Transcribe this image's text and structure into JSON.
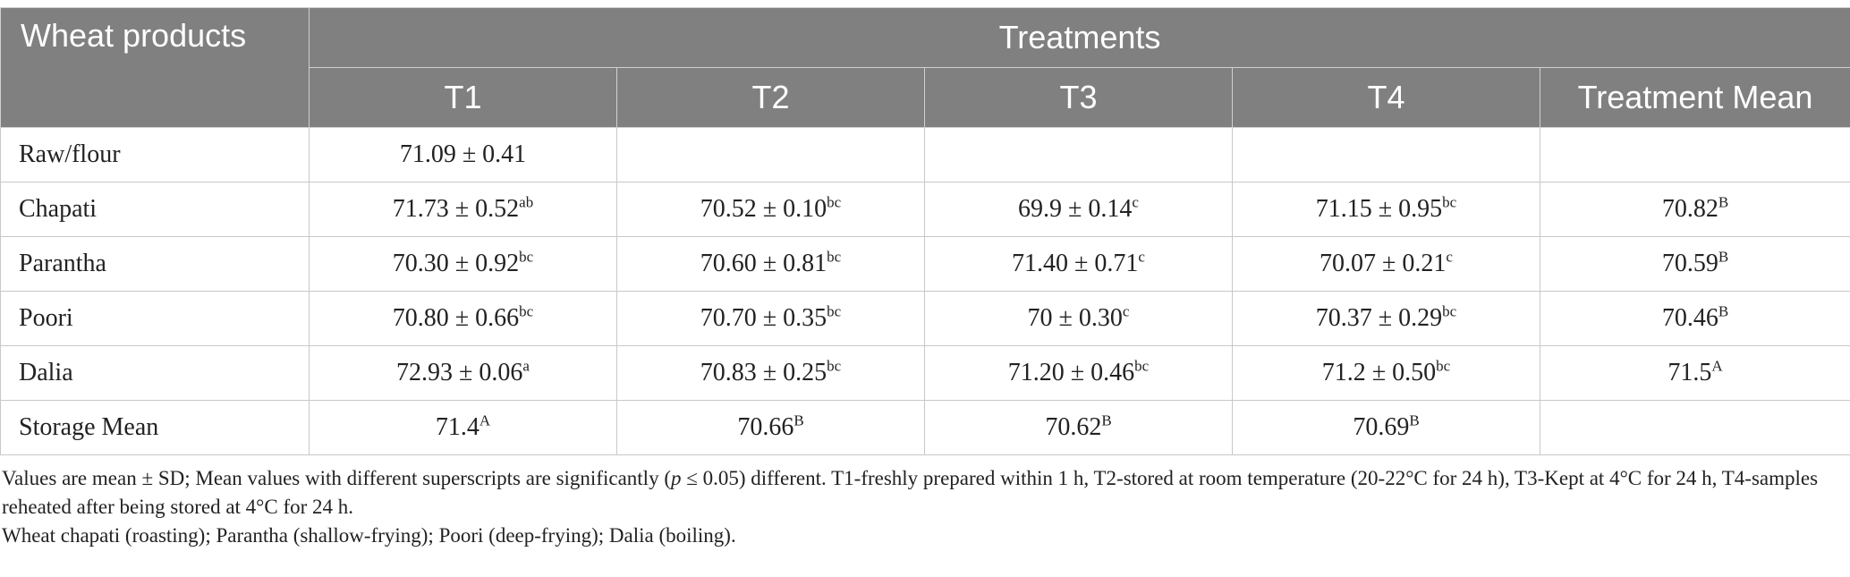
{
  "header": {
    "corner": "Wheat products",
    "group": "Treatments",
    "columns": [
      "T1",
      "T2",
      "T3",
      "T4",
      "Treatment Mean"
    ]
  },
  "rows": [
    {
      "label": "Raw/flour",
      "cells": [
        {
          "v": "71.09 ± 0.41",
          "s": ""
        },
        {
          "v": "",
          "s": ""
        },
        {
          "v": "",
          "s": ""
        },
        {
          "v": "",
          "s": ""
        },
        {
          "v": "",
          "s": ""
        }
      ]
    },
    {
      "label": "Chapati",
      "cells": [
        {
          "v": "71.73 ± 0.52",
          "s": "ab"
        },
        {
          "v": "70.52 ± 0.10",
          "s": "bc"
        },
        {
          "v": "69.9 ± 0.14",
          "s": "c"
        },
        {
          "v": "71.15 ± 0.95",
          "s": "bc"
        },
        {
          "v": "70.82",
          "s": "B"
        }
      ]
    },
    {
      "label": "Parantha",
      "cells": [
        {
          "v": "70.30 ± 0.92",
          "s": "bc"
        },
        {
          "v": "70.60 ± 0.81",
          "s": "bc"
        },
        {
          "v": "71.40 ± 0.71",
          "s": "c"
        },
        {
          "v": "70.07 ± 0.21",
          "s": "c"
        },
        {
          "v": "70.59",
          "s": "B"
        }
      ]
    },
    {
      "label": "Poori",
      "cells": [
        {
          "v": "70.80 ± 0.66",
          "s": "bc"
        },
        {
          "v": "70.70 ± 0.35",
          "s": "bc"
        },
        {
          "v": "70 ± 0.30",
          "s": "c"
        },
        {
          "v": "70.37 ± 0.29",
          "s": "bc"
        },
        {
          "v": "70.46",
          "s": "B"
        }
      ]
    },
    {
      "label": "Dalia",
      "cells": [
        {
          "v": "72.93 ± 0.06",
          "s": "a"
        },
        {
          "v": "70.83 ± 0.25",
          "s": "bc"
        },
        {
          "v": "71.20 ± 0.46",
          "s": "bc"
        },
        {
          "v": "71.2 ± 0.50",
          "s": "bc"
        },
        {
          "v": "71.5",
          "s": "A"
        }
      ]
    },
    {
      "label": "Storage Mean",
      "cells": [
        {
          "v": "71.4",
          "s": "A"
        },
        {
          "v": "70.66",
          "s": "B"
        },
        {
          "v": "70.62",
          "s": "B"
        },
        {
          "v": "70.69",
          "s": "B"
        },
        {
          "v": "",
          "s": ""
        }
      ]
    }
  ],
  "footnotes": {
    "line1_pre": "Values are mean ± SD; Mean values with different superscripts are significantly (",
    "line1_p": "p",
    "line1_post": " ≤ 0.05) different. T1-freshly prepared within 1 h, T2-stored at room temperature (20-22°C for 24 h), T3-Kept at 4°C for 24 h, T4-samples reheated after being stored at 4°C for 24 h.",
    "line2": "Wheat chapati (roasting); Parantha (shallow-frying); Poori (deep-frying); Dalia (boiling)."
  }
}
